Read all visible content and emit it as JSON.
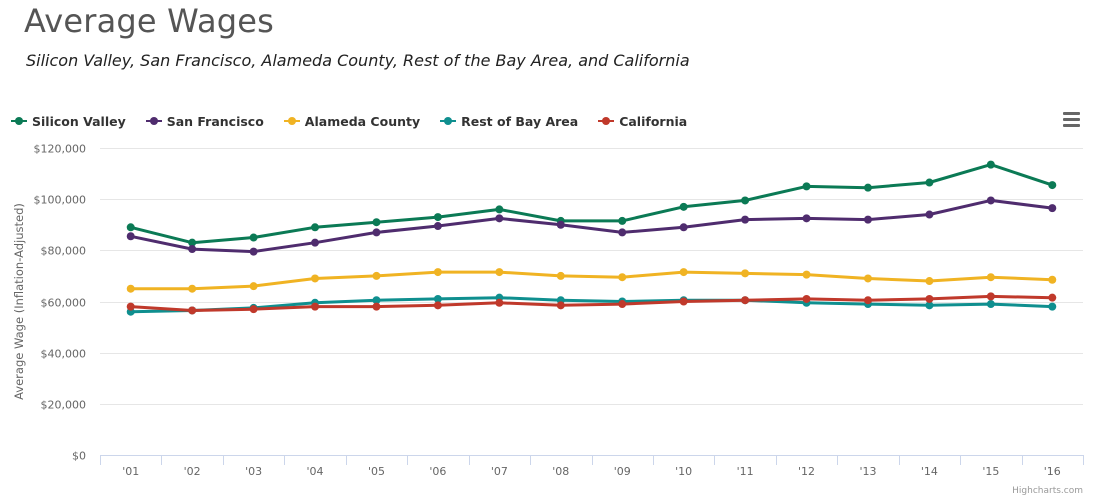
{
  "header": {
    "title": "Average Wages",
    "subtitle": "Silicon Valley, San Francisco, Alameda County, Rest of the Bay Area, and California"
  },
  "menu": {
    "icon": "hamburger-menu-icon"
  },
  "credits": "Highcharts.com",
  "chart_data": {
    "type": "line",
    "title": "Average Wages",
    "subtitle": "Silicon Valley, San Francisco, Alameda County, Rest of the Bay Area, and California",
    "xlabel": "",
    "ylabel": "Average Wage (Inflation-Adjusted)",
    "ylim": [
      0,
      120000
    ],
    "yticks": [
      0,
      20000,
      40000,
      60000,
      80000,
      100000,
      120000
    ],
    "ytick_labels": [
      "$0",
      "$20,000",
      "$40,000",
      "$60,000",
      "$80,000",
      "$100,000",
      "$120,000"
    ],
    "categories": [
      "'01",
      "'02",
      "'03",
      "'04",
      "'05",
      "'06",
      "'07",
      "'08",
      "'09",
      "'10",
      "'11",
      "'12",
      "'13",
      "'14",
      "'15",
      "'16"
    ],
    "grid": true,
    "legend_position": "top-left",
    "series": [
      {
        "name": "Silicon Valley",
        "color": "#0b7a55",
        "values": [
          89000,
          83000,
          85000,
          89000,
          91000,
          93000,
          96000,
          91500,
          91500,
          97000,
          99500,
          105000,
          104500,
          106500,
          113500,
          105500
        ]
      },
      {
        "name": "San Francisco",
        "color": "#4f2c6e",
        "values": [
          85500,
          80500,
          79500,
          83000,
          87000,
          89500,
          92500,
          90000,
          87000,
          89000,
          92000,
          92500,
          92000,
          94000,
          99500,
          96500
        ]
      },
      {
        "name": "Alameda County",
        "color": "#f0b323",
        "values": [
          65000,
          65000,
          66000,
          69000,
          70000,
          71500,
          71500,
          70000,
          69500,
          71500,
          71000,
          70500,
          69000,
          68000,
          69500,
          68500
        ]
      },
      {
        "name": "Rest of Bay Area",
        "color": "#0f8f8f",
        "values": [
          56000,
          56500,
          57500,
          59500,
          60500,
          61000,
          61500,
          60500,
          60000,
          60500,
          60500,
          59500,
          59000,
          58500,
          59000,
          58000
        ]
      },
      {
        "name": "California",
        "color": "#c0392b",
        "values": [
          58000,
          56500,
          57000,
          58000,
          58000,
          58500,
          59500,
          58500,
          59000,
          60000,
          60500,
          61000,
          60500,
          61000,
          62000,
          61500
        ]
      }
    ]
  }
}
